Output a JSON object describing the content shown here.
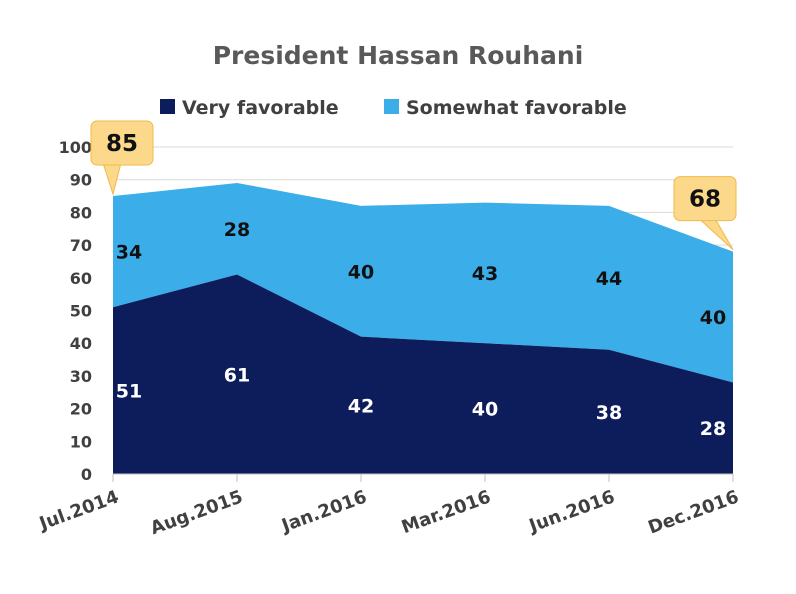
{
  "chart_data": {
    "type": "area",
    "stacked": true,
    "title": "President Hassan Rouhani",
    "categories": [
      "Jul.2014",
      "Aug.2015",
      "Jan.2016",
      "Mar.2016",
      "Jun.2016",
      "Dec.2016"
    ],
    "series": [
      {
        "name": "Very favorable",
        "values": [
          51,
          61,
          42,
          40,
          38,
          28
        ],
        "color": "#0d1d5c"
      },
      {
        "name": "Somewhat favorable",
        "values": [
          34,
          28,
          40,
          43,
          44,
          40
        ],
        "color": "#3baeea"
      }
    ],
    "ylim": [
      0,
      100
    ],
    "yticks": [
      0,
      10,
      20,
      30,
      40,
      50,
      60,
      70,
      80,
      90,
      100
    ],
    "grid": true,
    "legend": "top",
    "callouts": [
      {
        "label": "85",
        "category_index": 0,
        "position": "left"
      },
      {
        "label": "68",
        "category_index": 5,
        "position": "right"
      }
    ],
    "label_colors": {
      "bottom": "#ffffff",
      "top": "#111111"
    },
    "callout_color": "#fcd98a"
  }
}
